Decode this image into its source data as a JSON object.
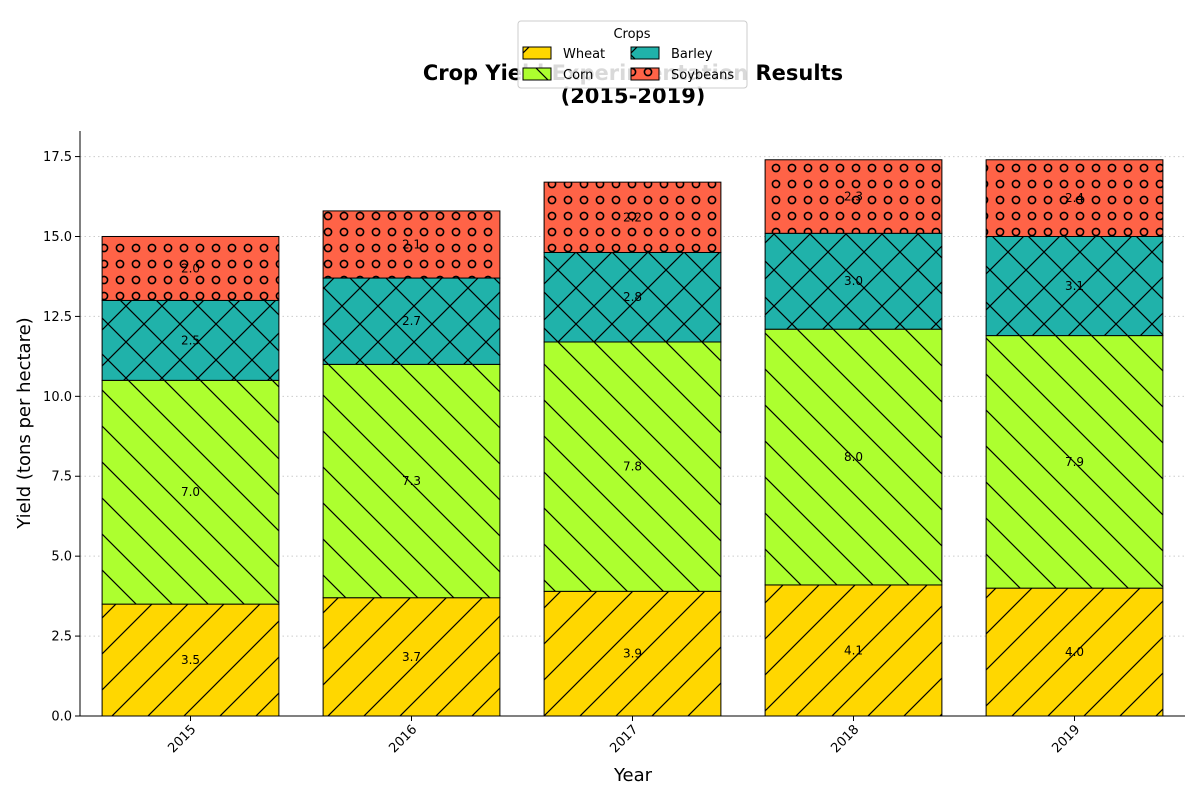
{
  "chart_data": {
    "type": "bar",
    "stacked": true,
    "title_line1": "Crop Yield Experimentation Results",
    "title_line2": "(2015-2019)",
    "xlabel": "Year",
    "ylabel": "Yield (tons per hectare)",
    "categories": [
      "2015",
      "2016",
      "2017",
      "2018",
      "2019"
    ],
    "ylim": [
      0,
      18.3
    ],
    "yticks": [
      0.0,
      2.5,
      5.0,
      7.5,
      10.0,
      12.5,
      15.0,
      17.5
    ],
    "ytick_labels": [
      "0.0",
      "2.5",
      "5.0",
      "7.5",
      "10.0",
      "12.5",
      "15.0",
      "17.5"
    ],
    "grid": "horizontal dotted",
    "legend": {
      "title": "Crops",
      "placement": "top-center",
      "columns": 2
    },
    "series": [
      {
        "name": "Wheat",
        "color": "#FFD700",
        "hatch": "forward-diagonal",
        "values": [
          3.5,
          3.7,
          3.9,
          4.1,
          4.0
        ],
        "labels": [
          "3.5",
          "3.7",
          "3.9",
          "4.1",
          "4.0"
        ]
      },
      {
        "name": "Corn",
        "color": "#ADFF2F",
        "hatch": "back-diagonal",
        "values": [
          7.0,
          7.3,
          7.8,
          8.0,
          7.9
        ],
        "labels": [
          "7.0",
          "7.3",
          "7.8",
          "8.0",
          "7.9"
        ]
      },
      {
        "name": "Barley",
        "color": "#20B2AA",
        "hatch": "crosshatch",
        "values": [
          2.5,
          2.7,
          2.8,
          3.0,
          3.1
        ],
        "labels": [
          "2.5",
          "2.7",
          "2.8",
          "3.0",
          "3.1"
        ]
      },
      {
        "name": "Soybeans",
        "color": "#FF6347",
        "hatch": "circles",
        "values": [
          2.0,
          2.1,
          2.2,
          2.3,
          2.4
        ],
        "labels": [
          "2.0",
          "2.1",
          "2.2",
          "2.3",
          "2.4"
        ]
      }
    ]
  }
}
